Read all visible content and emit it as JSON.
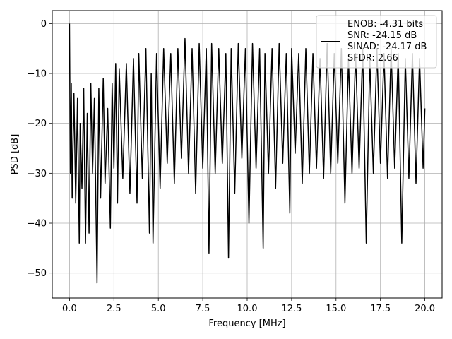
{
  "chart_data": {
    "type": "line",
    "title": "",
    "xlabel": "Frequency [MHz]",
    "ylabel": "PSD [dB]",
    "xlim": [
      -0.97,
      20.97
    ],
    "ylim": [
      -55,
      2.6
    ],
    "xticks": [
      0.0,
      2.5,
      5.0,
      7.5,
      10.0,
      12.5,
      15.0,
      17.5,
      20.0
    ],
    "xtick_labels": [
      "0.0",
      "2.5",
      "5.0",
      "7.5",
      "10.0",
      "12.5",
      "15.0",
      "17.5",
      "20.0"
    ],
    "yticks": [
      0,
      -10,
      -20,
      -30,
      -40,
      -50
    ],
    "ytick_labels": [
      "0",
      "−10",
      "−20",
      "−30",
      "−40",
      "−50"
    ],
    "grid": true,
    "legend_position": "upper-right",
    "legend_lines": [
      "ENOB: -4.31 bits",
      "SNR: -24.15 dB",
      "SINAD: -24.17 dB",
      "SFDR: 2.66"
    ],
    "line_color": "#000000",
    "series": [
      {
        "x": [
          0.0,
          0.05,
          0.1,
          0.15,
          0.25,
          0.35,
          0.45,
          0.55,
          0.6,
          0.7,
          0.8,
          0.9,
          1.0,
          1.1,
          1.2,
          1.3,
          1.4,
          1.55,
          1.65,
          1.75,
          1.9,
          2.0,
          2.15,
          2.3,
          2.4,
          2.5,
          2.6,
          2.7,
          2.8,
          3.0,
          3.2,
          3.4,
          3.6,
          3.8,
          3.9,
          4.1,
          4.3,
          4.5,
          4.6,
          4.7,
          4.9,
          5.1,
          5.3,
          5.5,
          5.7,
          5.9,
          6.1,
          6.3,
          6.5,
          6.7,
          6.9,
          7.1,
          7.3,
          7.5,
          7.7,
          7.85,
          8.0,
          8.2,
          8.4,
          8.6,
          8.8,
          8.95,
          9.1,
          9.3,
          9.5,
          9.7,
          9.9,
          10.1,
          10.3,
          10.5,
          10.7,
          10.9,
          11.0,
          11.2,
          11.4,
          11.6,
          11.8,
          12.0,
          12.2,
          12.4,
          12.5,
          12.7,
          12.9,
          13.1,
          13.3,
          13.5,
          13.7,
          13.9,
          14.1,
          14.3,
          14.5,
          14.7,
          14.9,
          15.1,
          15.3,
          15.5,
          15.7,
          15.9,
          16.1,
          16.3,
          16.5,
          16.7,
          16.9,
          17.1,
          17.3,
          17.5,
          17.7,
          17.9,
          18.1,
          18.3,
          18.5,
          18.7,
          18.9,
          19.1,
          19.3,
          19.5,
          19.7,
          19.9,
          20.0
        ],
        "y": [
          0.0,
          -30.0,
          -12.0,
          -35.0,
          -14.0,
          -36.0,
          -15.0,
          -44.0,
          -20.0,
          -33.0,
          -13.0,
          -44.0,
          -18.0,
          -42.0,
          -12.0,
          -30.0,
          -15.0,
          -52.0,
          -13.0,
          -35.0,
          -11.0,
          -32.0,
          -17.0,
          -41.0,
          -12.0,
          -29.0,
          -8.0,
          -36.0,
          -9.0,
          -31.0,
          -8.0,
          -34.0,
          -7.0,
          -36.0,
          -6.0,
          -31.0,
          -5.0,
          -42.0,
          -10.0,
          -44.0,
          -6.0,
          -33.0,
          -5.0,
          -28.0,
          -6.0,
          -32.0,
          -5.0,
          -27.0,
          -3.0,
          -30.0,
          -5.0,
          -34.0,
          -4.0,
          -29.0,
          -5.0,
          -46.0,
          -4.0,
          -30.0,
          -5.0,
          -28.0,
          -6.0,
          -47.0,
          -5.0,
          -34.0,
          -4.0,
          -27.0,
          -5.0,
          -40.0,
          -4.0,
          -29.0,
          -5.0,
          -45.0,
          -6.0,
          -30.0,
          -5.0,
          -33.0,
          -4.0,
          -28.0,
          -6.0,
          -38.0,
          -5.0,
          -26.0,
          -6.0,
          -32.0,
          -5.0,
          -30.0,
          -6.0,
          -29.0,
          -7.0,
          -31.0,
          -4.0,
          -30.0,
          -6.0,
          -28.0,
          -5.0,
          -36.0,
          -7.0,
          -30.0,
          -6.0,
          -29.0,
          -5.0,
          -44.0,
          -7.0,
          -30.0,
          -5.0,
          -28.0,
          -6.0,
          -31.0,
          -5.0,
          -29.0,
          -6.0,
          -44.0,
          -7.0,
          -31.0,
          -6.0,
          -32.0,
          -7.0,
          -29.0,
          -17.0
        ]
      }
    ]
  }
}
